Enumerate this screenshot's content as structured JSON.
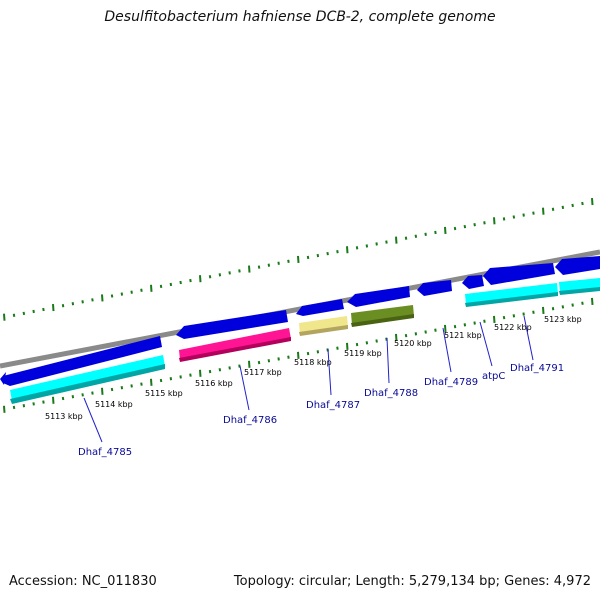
{
  "title": "Desulfitobacterium hafniense DCB-2, complete genome",
  "footer": {
    "accession": "Accession: NC_011830",
    "summary": "Topology: circular; Length: 5,279,134 bp; Genes: 4,972"
  },
  "colors": {
    "backbone": "#8a8a8a",
    "ticks": "#1a7a1a",
    "gene": "#0000dd",
    "cds_cyan": "#00ffff",
    "cds_magenta": "#ff1493",
    "cds_khaki": "#f0e68c",
    "cds_olive": "#6b8e23",
    "label": "#0a0a96"
  },
  "scale_labels": [
    "5113 kbp",
    "5114 kbp",
    "5115 kbp",
    "5116 kbp",
    "5117 kbp",
    "5118 kbp",
    "5119 kbp",
    "5120 kbp",
    "5121 kbp",
    "5122 kbp",
    "5123 kbp"
  ],
  "genes": [
    {
      "label": "Dhaf_4785"
    },
    {
      "label": "Dhaf_4786"
    },
    {
      "label": "Dhaf_4787"
    },
    {
      "label": "Dhaf_4788"
    },
    {
      "label": "Dhaf_4789"
    },
    {
      "label": "atpC"
    },
    {
      "label": "Dhaf_4791"
    }
  ]
}
